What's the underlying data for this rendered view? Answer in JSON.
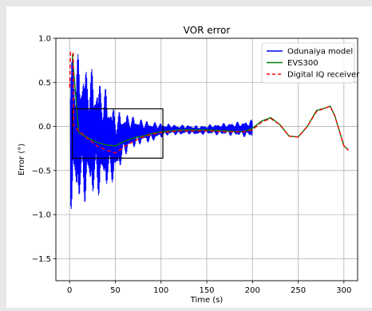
{
  "chart_data": {
    "type": "line",
    "title": "VOR error",
    "xlabel": "Time (s)",
    "ylabel": "Error (°)",
    "xlim": [
      -15,
      315
    ],
    "ylim": [
      -1.75,
      1.0
    ],
    "xticks": [
      0,
      50,
      100,
      150,
      200,
      250,
      300
    ],
    "xtick_labels": [
      "0",
      "50",
      "100",
      "150",
      "200",
      "250",
      "300"
    ],
    "yticks": [
      -1.5,
      -1.0,
      -0.5,
      0.0,
      0.5,
      1.0
    ],
    "ytick_labels": [
      "−1.5",
      "−1.0",
      "−0.5",
      "0.0",
      "0.5",
      "1.0"
    ],
    "grid": true,
    "legend_position": "top-right",
    "series": [
      {
        "name": "Odunaiya model",
        "color": "#0000ff",
        "style": "solid",
        "envelope": {
          "x": [
            1,
            5,
            10,
            20,
            30,
            40,
            50,
            60,
            70,
            80,
            90,
            100,
            110,
            120,
            130,
            140,
            150,
            160,
            170,
            180,
            190,
            200
          ],
          "upper": [
            1.0,
            0.88,
            0.82,
            0.72,
            0.6,
            0.44,
            0.2,
            0.16,
            0.12,
            0.08,
            0.06,
            0.04,
            0.03,
            0.02,
            0.02,
            0.01,
            0.02,
            0.03,
            0.04,
            0.05,
            0.06,
            0.08
          ],
          "lower": [
            -0.95,
            -0.95,
            -0.92,
            -0.86,
            -0.82,
            -0.72,
            -0.62,
            -0.35,
            -0.25,
            -0.2,
            -0.18,
            -0.13,
            -0.1,
            -0.1,
            -0.09,
            -0.1,
            -0.09,
            -0.1,
            -0.1,
            -0.11,
            -0.12,
            -0.13
          ]
        }
      },
      {
        "name": "EVS300",
        "color": "#008000",
        "style": "solid",
        "x": [
          3,
          10,
          20,
          30,
          40,
          50,
          60,
          70,
          80,
          90,
          100,
          110,
          120,
          130,
          150,
          170,
          190,
          200,
          210,
          220,
          230,
          240,
          250,
          260,
          270,
          280,
          285,
          290,
          300,
          305
        ],
        "y": [
          0.82,
          -0.07,
          -0.13,
          -0.18,
          -0.21,
          -0.22,
          -0.17,
          -0.13,
          -0.11,
          -0.08,
          -0.06,
          -0.05,
          -0.04,
          -0.04,
          -0.04,
          -0.05,
          -0.06,
          -0.02,
          0.06,
          0.1,
          0.02,
          -0.11,
          -0.12,
          0.0,
          0.18,
          0.21,
          0.23,
          0.12,
          -0.22,
          -0.27
        ]
      },
      {
        "name": "Digital IQ receiver",
        "color": "#ff0000",
        "style": "dashed",
        "x": [
          0,
          1,
          2,
          4,
          4.5,
          5,
          10,
          20,
          30,
          40,
          50,
          60,
          70,
          80,
          90,
          100,
          110,
          120,
          130,
          150,
          170,
          190,
          200,
          210,
          220,
          230,
          240,
          250,
          260,
          270,
          280,
          285,
          290,
          300,
          305
        ],
        "y": [
          0.44,
          0.84,
          0.84,
          0.84,
          0.02,
          0.0,
          -0.05,
          -0.14,
          -0.22,
          -0.27,
          -0.3,
          -0.23,
          -0.17,
          -0.12,
          -0.09,
          -0.07,
          -0.06,
          -0.05,
          -0.05,
          -0.05,
          -0.06,
          -0.06,
          -0.04,
          0.05,
          0.09,
          0.02,
          -0.11,
          -0.12,
          0.0,
          0.17,
          0.21,
          0.23,
          0.12,
          -0.22,
          -0.27
        ]
      }
    ],
    "zoom_box": {
      "x": [
        3,
        102
      ],
      "y": [
        -0.36,
        0.2
      ]
    }
  }
}
